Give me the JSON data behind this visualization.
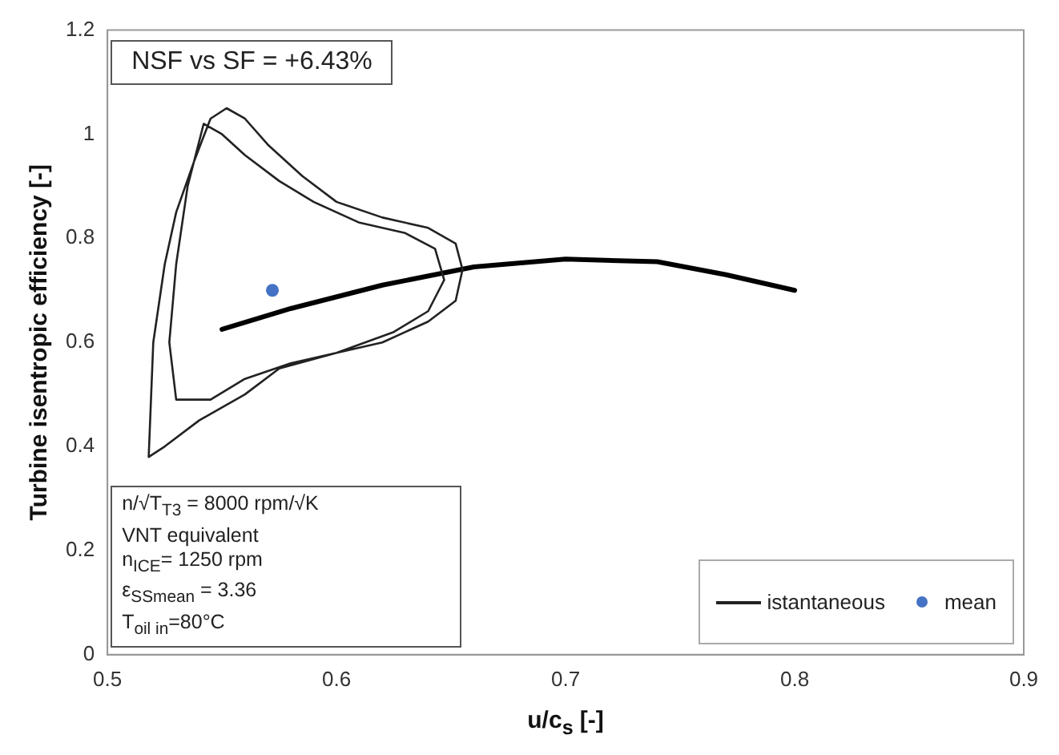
{
  "chart_data": {
    "type": "line",
    "xlabel": "u/c$_{s}$ [-]",
    "ylabel": "Turbine isentropic efficiency [-]",
    "xlim": [
      0.5,
      0.9
    ],
    "xticks": [
      0.5,
      0.6,
      0.7,
      0.8,
      0.9
    ],
    "ylim": [
      0,
      1.2
    ],
    "yticks": [
      0,
      0.2,
      0.4,
      0.6,
      0.8,
      1.0,
      1.2
    ],
    "grid": false,
    "legend": "bottom right",
    "marker": "none",
    "annotations": [
      "NSF vs SF = +6.43%",
      "n/√T$_{T3}$ = 8000 rpm/√K",
      "VNT equivalent",
      "n$_{ICE}$= 1250 rpm",
      "ε$_{SSmean}$ = 3.36",
      "T$_{oil in}$=80°C"
    ],
    "series": [
      {
        "name": "istantaneous",
        "color": "#222222",
        "x": [
          0.518,
          0.52,
          0.525,
          0.53,
          0.538,
          0.545,
          0.552,
          0.56,
          0.57,
          0.585,
          0.6,
          0.62,
          0.64,
          0.652,
          0.655,
          null,
          0.518,
          0.525,
          0.54,
          0.56,
          0.575,
          0.6,
          0.62,
          0.64,
          0.652,
          0.655,
          null,
          0.527,
          0.53,
          0.535,
          0.542,
          0.55,
          0.56,
          0.575,
          0.59,
          0.61,
          0.63,
          0.643,
          0.647,
          null,
          0.527,
          0.53,
          0.545,
          0.56,
          0.58,
          0.6,
          0.625,
          0.64,
          0.647
        ],
        "values": [
          0.38,
          0.6,
          0.75,
          0.85,
          0.95,
          1.03,
          1.05,
          1.03,
          0.98,
          0.92,
          0.87,
          0.84,
          0.82,
          0.79,
          0.74,
          null,
          0.38,
          0.4,
          0.45,
          0.5,
          0.55,
          0.58,
          0.6,
          0.64,
          0.68,
          0.74,
          null,
          0.6,
          0.75,
          0.9,
          1.02,
          1.0,
          0.96,
          0.91,
          0.87,
          0.83,
          0.81,
          0.78,
          0.72,
          null,
          0.6,
          0.49,
          0.49,
          0.53,
          0.56,
          0.58,
          0.62,
          0.66,
          0.72
        ]
      },
      {
        "color": "#000000",
        "x": [
          0.55,
          0.58,
          0.62,
          0.66,
          0.7,
          0.74,
          0.77,
          0.8
        ],
        "values": [
          0.625,
          0.665,
          0.71,
          0.745,
          0.76,
          0.755,
          0.73,
          0.7
        ]
      },
      {
        "name": "mean",
        "type": "scatter",
        "color": "#4472c4",
        "x": [
          0.572
        ],
        "values": [
          0.7
        ],
        "marker": "circle"
      }
    ]
  }
}
